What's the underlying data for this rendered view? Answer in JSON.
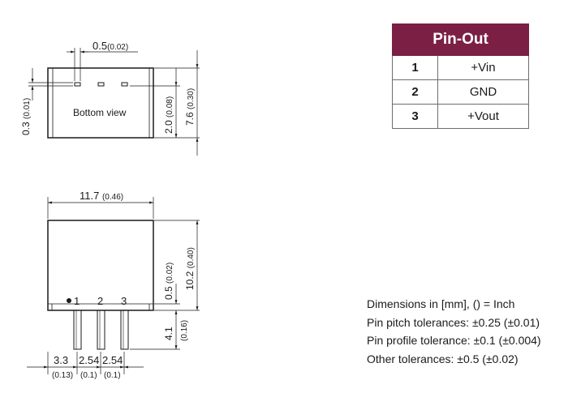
{
  "pinout": {
    "title": "Pin-Out",
    "rows": [
      {
        "pin": "1",
        "signal": "+Vin"
      },
      {
        "pin": "2",
        "signal": "GND"
      },
      {
        "pin": "3",
        "signal": "+Vout"
      }
    ]
  },
  "bottom_view": {
    "label": "Bottom view",
    "dim_pin_width_mm": "0.5",
    "dim_pin_width_in": "(0.02)",
    "dim_pin_depth_mm": "0.3",
    "dim_pin_depth_in": "(0.01)",
    "dim_pin_offset_mm": "2.0",
    "dim_pin_offset_in": "(0.08)",
    "dim_depth_mm": "7.6",
    "dim_depth_in": "(0.30)"
  },
  "front_view": {
    "dim_width_mm": "11.7",
    "dim_width_in": "(0.46)",
    "dim_height_mm": "10.2",
    "dim_height_in": "(0.40)",
    "dim_standoff_mm": "0.5",
    "dim_standoff_in": "(0.02)",
    "dim_pin_len_mm": "4.1",
    "dim_pin_len_in": "(0.16)",
    "pin_label_1": "1",
    "pin_label_2": "2",
    "pin_label_3": "3",
    "dim_first_mm": "3.3",
    "dim_first_in": "(0.13)",
    "dim_pitch1_mm": "2.54",
    "dim_pitch1_in": "(0.1)",
    "dim_pitch2_mm": "2.54",
    "dim_pitch2_in": "(0.1)"
  },
  "notes": [
    "Dimensions in [mm], () = Inch",
    "Pin pitch tolerances: ±0.25 (±0.01)",
    "Pin profile tolerance: ±0.1 (±0.004)",
    "Other tolerances:  ±0.5 (±0.02)"
  ],
  "colors": {
    "header_bg": "#7b1f45",
    "line": "#1a1a1a"
  }
}
